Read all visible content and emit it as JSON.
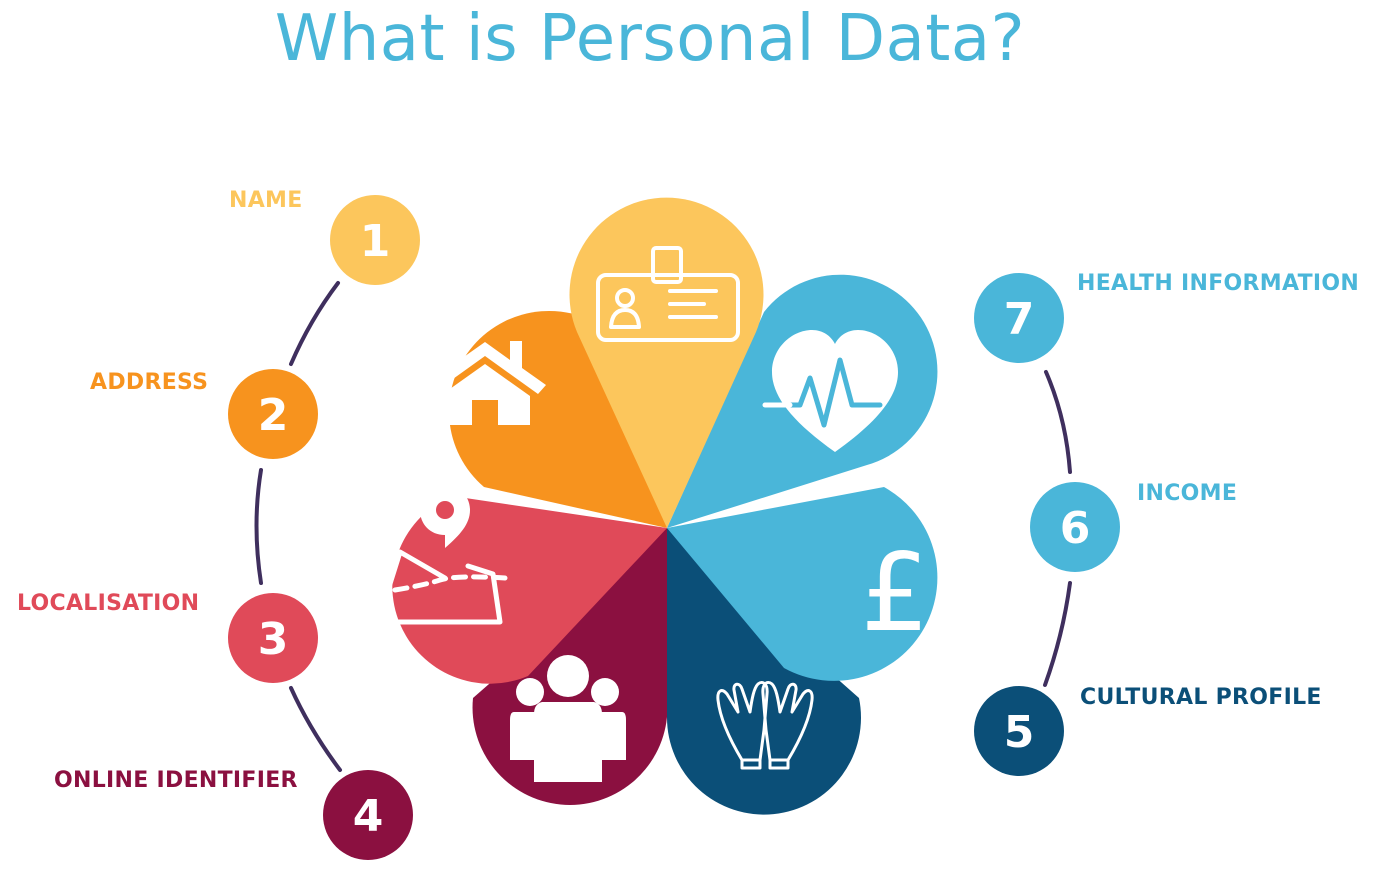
{
  "title": "What is Personal Data?",
  "colors": {
    "title": "#4ab6d9",
    "connector": "#3f2f5e"
  },
  "items": [
    {
      "number": "1",
      "label": "NAME",
      "color": "#fcc65c",
      "icon": "id-badge-icon"
    },
    {
      "number": "2",
      "label": "ADDRESS",
      "color": "#f7931e",
      "icon": "house-icon"
    },
    {
      "number": "3",
      "label": "LOCALISATION",
      "color": "#e04a59",
      "icon": "map-pin-icon"
    },
    {
      "number": "4",
      "label": "ONLINE IDENTIFIER",
      "color": "#8b1040",
      "icon": "people-group-icon"
    },
    {
      "number": "5",
      "label": "CULTURAL PROFILE",
      "color": "#0b4f78",
      "icon": "praying-hands-icon"
    },
    {
      "number": "6",
      "label": "INCOME",
      "color": "#4ab6d9",
      "icon": "pound-sign-icon"
    },
    {
      "number": "7",
      "label": "HEALTH INFORMATION",
      "color": "#4ab6d9",
      "icon": "heart-pulse-icon"
    }
  ],
  "petal_glyphs": {
    "currency": "£"
  }
}
